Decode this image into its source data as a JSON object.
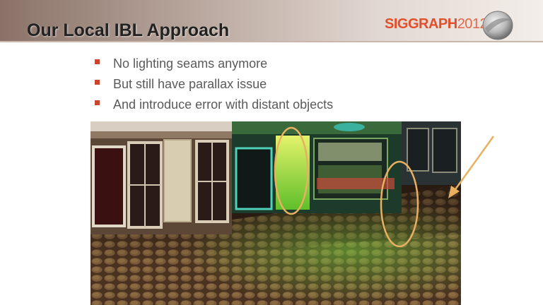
{
  "slide": {
    "title": "Our Local IBL Approach",
    "logo": {
      "text": "SIGGRAPH",
      "year": "2012"
    },
    "bullets": [
      "No lighting seams anymore",
      "But still have parallax issue",
      "And introduce error with distant objects"
    ]
  },
  "scene_image": {
    "highlight_color": "#e8b060",
    "bullet_color": "#c9452e",
    "accent_color": "#e34f2a"
  }
}
